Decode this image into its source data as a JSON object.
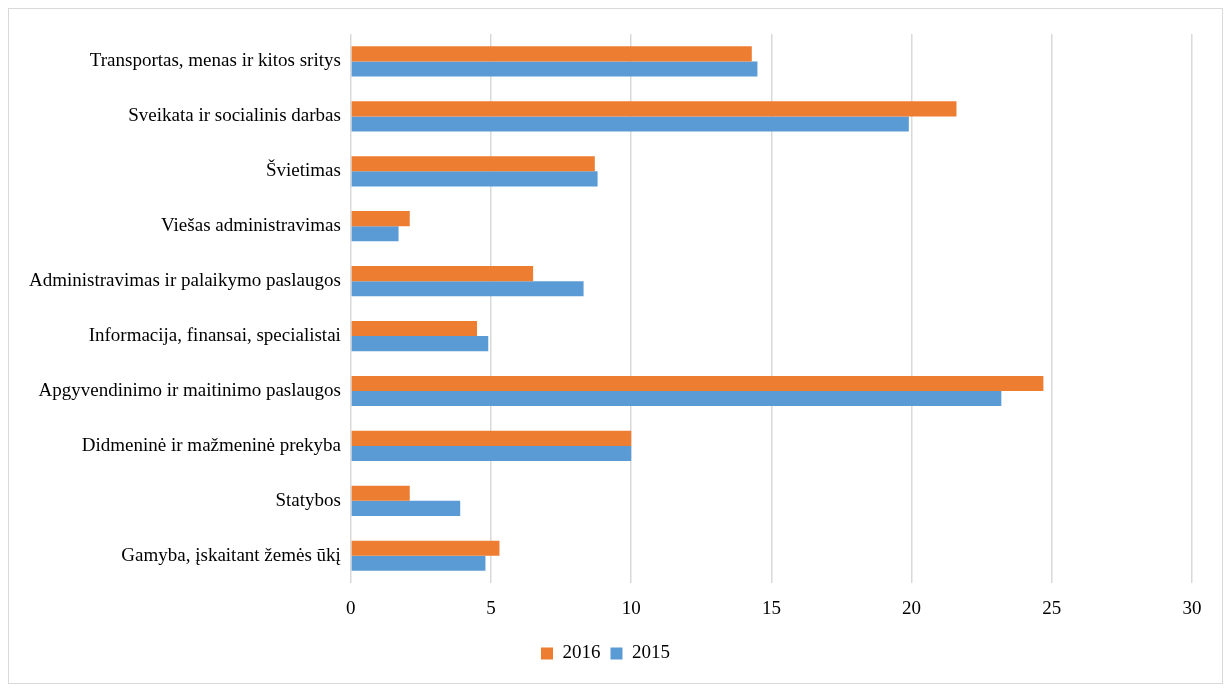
{
  "chart_data": {
    "type": "bar",
    "orientation": "horizontal",
    "categories": [
      "Transportas, menas ir kitos sritys",
      "Sveikata ir socialinis darbas",
      "Švietimas",
      "Viešas administravimas",
      "Administravimas ir palaikymo paslaugos",
      "Informacija, finansai, specialistai",
      "Apgyvendinimo ir maitinimo paslaugos",
      "Didmeninė ir mažmeninė prekyba",
      "Statybos",
      "Gamyba, įskaitant žemės ūkį"
    ],
    "series": [
      {
        "name": "2016",
        "color": "#ed7d31",
        "values": [
          14.3,
          21.6,
          8.7,
          2.1,
          6.5,
          4.5,
          24.7,
          10,
          2.1,
          5.3
        ]
      },
      {
        "name": "2015",
        "color": "#5b9bd5",
        "values": [
          14.5,
          19.9,
          8.8,
          1.7,
          8.3,
          4.9,
          23.2,
          10,
          3.9,
          4.8
        ]
      }
    ],
    "xlim": [
      0,
      30
    ],
    "xticks": [
      0,
      5,
      10,
      15,
      20,
      25,
      30
    ],
    "grid": "x",
    "legend": "bottom"
  }
}
